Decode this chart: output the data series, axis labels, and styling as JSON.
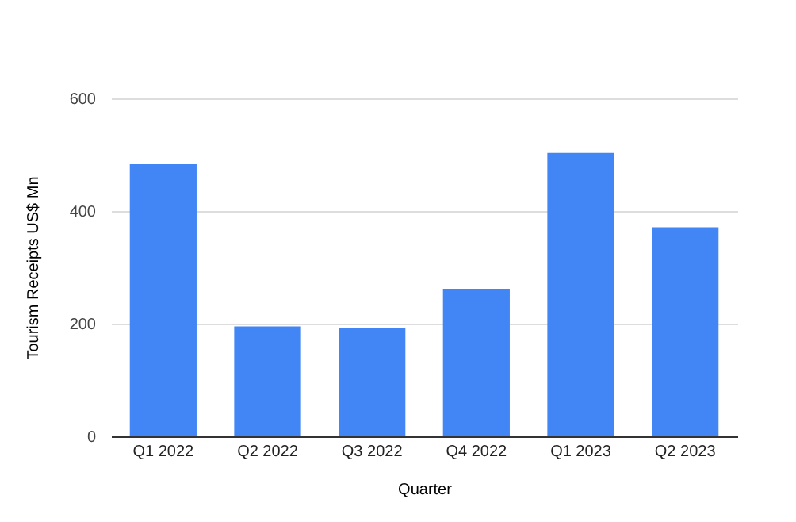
{
  "chart_data": {
    "type": "bar",
    "xlabel": "Quarter",
    "ylabel": "Tourism Receipts US$ Mn",
    "categories": [
      "Q1 2022",
      "Q2 2022",
      "Q3 2022",
      "Q4 2022",
      "Q1 2023",
      "Q2 2023"
    ],
    "values": [
      483,
      195,
      193,
      262,
      503,
      371
    ],
    "color": "#4285f4",
    "ylim": [
      0,
      600
    ],
    "yticks": [
      0,
      200,
      400,
      600
    ],
    "grid": "y"
  }
}
